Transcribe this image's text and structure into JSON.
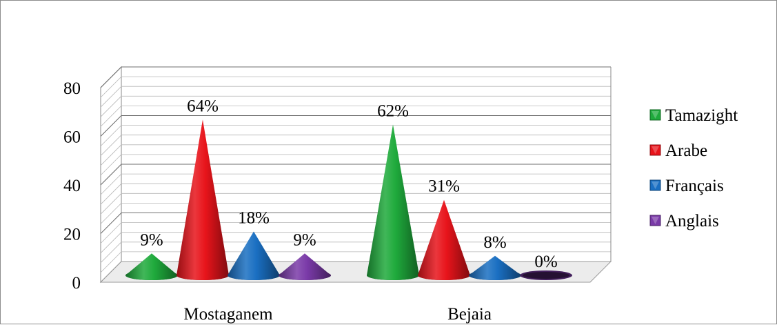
{
  "chart_data": {
    "type": "bar",
    "subtype": "3d-cone",
    "categories": [
      "Mostaganem",
      "Bejaia"
    ],
    "series": [
      {
        "name": "Tamazight",
        "values": [
          9,
          62
        ],
        "labels": [
          "9%",
          "62%"
        ],
        "color": "#1faa3c"
      },
      {
        "name": "Arabe",
        "values": [
          64,
          31
        ],
        "labels": [
          "64%",
          "31%"
        ],
        "color": "#e8141b"
      },
      {
        "name": "Français",
        "values": [
          18,
          8
        ],
        "labels": [
          "18%",
          "8%"
        ],
        "color": "#1a6fc2"
      },
      {
        "name": "Anglais",
        "values": [
          9,
          0
        ],
        "labels": [
          "9%",
          "0%"
        ],
        "color": "#7a3aa8"
      }
    ],
    "ylim": [
      0,
      80
    ],
    "yticks": [
      "0",
      "20",
      "40",
      "60",
      "80"
    ],
    "grid": true,
    "legend_position": "right",
    "title": "",
    "xlabel": "",
    "ylabel": ""
  }
}
